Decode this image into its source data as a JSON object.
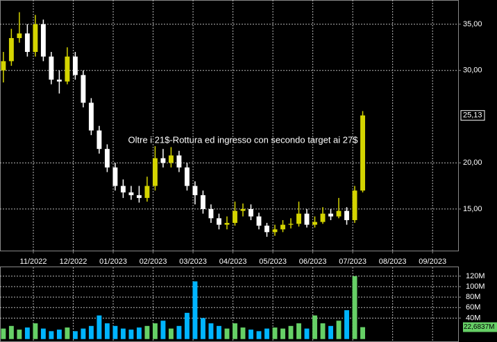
{
  "chart_data": {
    "type": "candlestick",
    "annotation": "Oltre i 21$-Rottura ed ingresso con secondo target ai 27$",
    "up_color": "#d4d400",
    "down_color": "#ffffff",
    "grid": true,
    "xlim": [
      10.165,
      21.64
    ],
    "xticks": [
      {
        "value": 11,
        "label": "11/2022"
      },
      {
        "value": 12,
        "label": "12/2022"
      },
      {
        "value": 13,
        "label": "01/2023"
      },
      {
        "value": 14,
        "label": "02/2023"
      },
      {
        "value": 15,
        "label": "03/2023"
      },
      {
        "value": 16,
        "label": "04/2023"
      },
      {
        "value": 17,
        "label": "05/2023"
      },
      {
        "value": 18,
        "label": "06/2023"
      },
      {
        "value": 19,
        "label": "07/2023"
      },
      {
        "value": 20,
        "label": "08/2023"
      },
      {
        "value": 21,
        "label": "09/2023"
      }
    ],
    "ylim": [
      10.5,
      37.62
    ],
    "yticks": [
      {
        "value": 15,
        "label": "15,00"
      },
      {
        "value": 20,
        "label": "20,00"
      },
      {
        "value": 30,
        "label": "30,00"
      },
      {
        "value": 35,
        "label": "35,00"
      }
    ],
    "last_price_label": {
      "value": 25.13,
      "label": "25,13"
    },
    "x": [
      10.25,
      10.45,
      10.65,
      10.85,
      11.05,
      11.25,
      11.45,
      11.65,
      11.85,
      12.05,
      12.25,
      12.45,
      12.65,
      12.85,
      13.05,
      13.25,
      13.45,
      13.65,
      13.85,
      14.05,
      14.25,
      14.45,
      14.65,
      14.85,
      15.05,
      15.25,
      15.45,
      15.65,
      15.85,
      16.05,
      16.25,
      16.45,
      16.65,
      16.85,
      17.05,
      17.25,
      17.45,
      17.65,
      17.85,
      18.05,
      18.25,
      18.45,
      18.65,
      18.85,
      19.05,
      19.25
    ],
    "open": [
      30,
      31,
      33.5,
      34,
      32,
      35,
      31.5,
      29,
      28.8,
      31.5,
      29.5,
      26.5,
      23.5,
      21.5,
      19.5,
      17.5,
      16.8,
      16.5,
      16.2,
      17.5,
      20.5,
      20,
      20.8,
      19.5,
      17.5,
      16.5,
      15,
      14,
      13.3,
      13.5,
      14.8,
      15,
      14.2,
      13.2,
      12.5,
      12.8,
      13.3,
      13.4,
      14.5,
      13.3,
      13.6,
      14.5,
      14.2,
      14.8,
      13.8,
      17
    ],
    "high": [
      32,
      34.5,
      36.3,
      35,
      36,
      35.5,
      32,
      30,
      32.5,
      32,
      30,
      27,
      24,
      22,
      20,
      18.2,
      17.5,
      17.5,
      18.5,
      21.8,
      21.5,
      21.7,
      21.3,
      20,
      18,
      17,
      15.5,
      14.5,
      14.2,
      15.8,
      15.6,
      15.5,
      14.6,
      13.5,
      13.3,
      13.8,
      14,
      15.8,
      15,
      14.2,
      15.2,
      15,
      16.2,
      15.2,
      17.5,
      25.6
    ],
    "low": [
      28.7,
      30.5,
      33,
      31.5,
      31.5,
      31,
      28.5,
      27.5,
      28.5,
      29,
      26,
      23,
      21,
      19,
      17,
      16.2,
      16,
      15.7,
      15.8,
      17,
      19.5,
      19.5,
      19,
      17,
      15.5,
      14.5,
      13.5,
      12.8,
      12.8,
      13.2,
      14.2,
      13.8,
      12.8,
      12,
      12.1,
      12.5,
      12.9,
      13.1,
      13,
      13,
      13.4,
      13.8,
      14,
      13.3,
      13.5,
      16.8
    ],
    "close": [
      31,
      33.5,
      34,
      32,
      35,
      31.5,
      29,
      28.8,
      31.5,
      29.5,
      26.5,
      23.5,
      21.5,
      19.5,
      17.5,
      16.8,
      16.5,
      16.2,
      17.5,
      20.5,
      20,
      20.8,
      19.5,
      17.5,
      16.5,
      15,
      14,
      13.3,
      13.5,
      14.8,
      15,
      14.2,
      13.2,
      12.5,
      12.8,
      13.3,
      13.4,
      14.5,
      13.3,
      13.6,
      14.5,
      14.2,
      14.8,
      13.8,
      17,
      25.13
    ],
    "volume": {
      "up_color": "#66d066",
      "down_color": "#00b4ff",
      "ylim": [
        -3,
        137
      ],
      "yticks": [
        {
          "value": 40,
          "label": "40M"
        },
        {
          "value": 60,
          "label": "60M"
        },
        {
          "value": 80,
          "label": "80M"
        },
        {
          "value": 100,
          "label": "100M"
        },
        {
          "value": 120,
          "label": "120M"
        }
      ],
      "last_label": {
        "value": 22.6837,
        "label": "22,6837M"
      },
      "values": [
        20,
        25,
        18,
        22,
        30,
        20,
        15,
        18,
        22,
        15,
        20,
        25,
        45,
        30,
        25,
        20,
        18,
        22,
        25,
        30,
        35,
        20,
        25,
        50,
        110,
        40,
        30,
        25,
        20,
        30,
        22,
        18,
        15,
        20,
        22,
        20,
        25,
        30,
        20,
        45,
        30,
        25,
        35,
        55,
        120,
        22.6837
      ]
    }
  }
}
